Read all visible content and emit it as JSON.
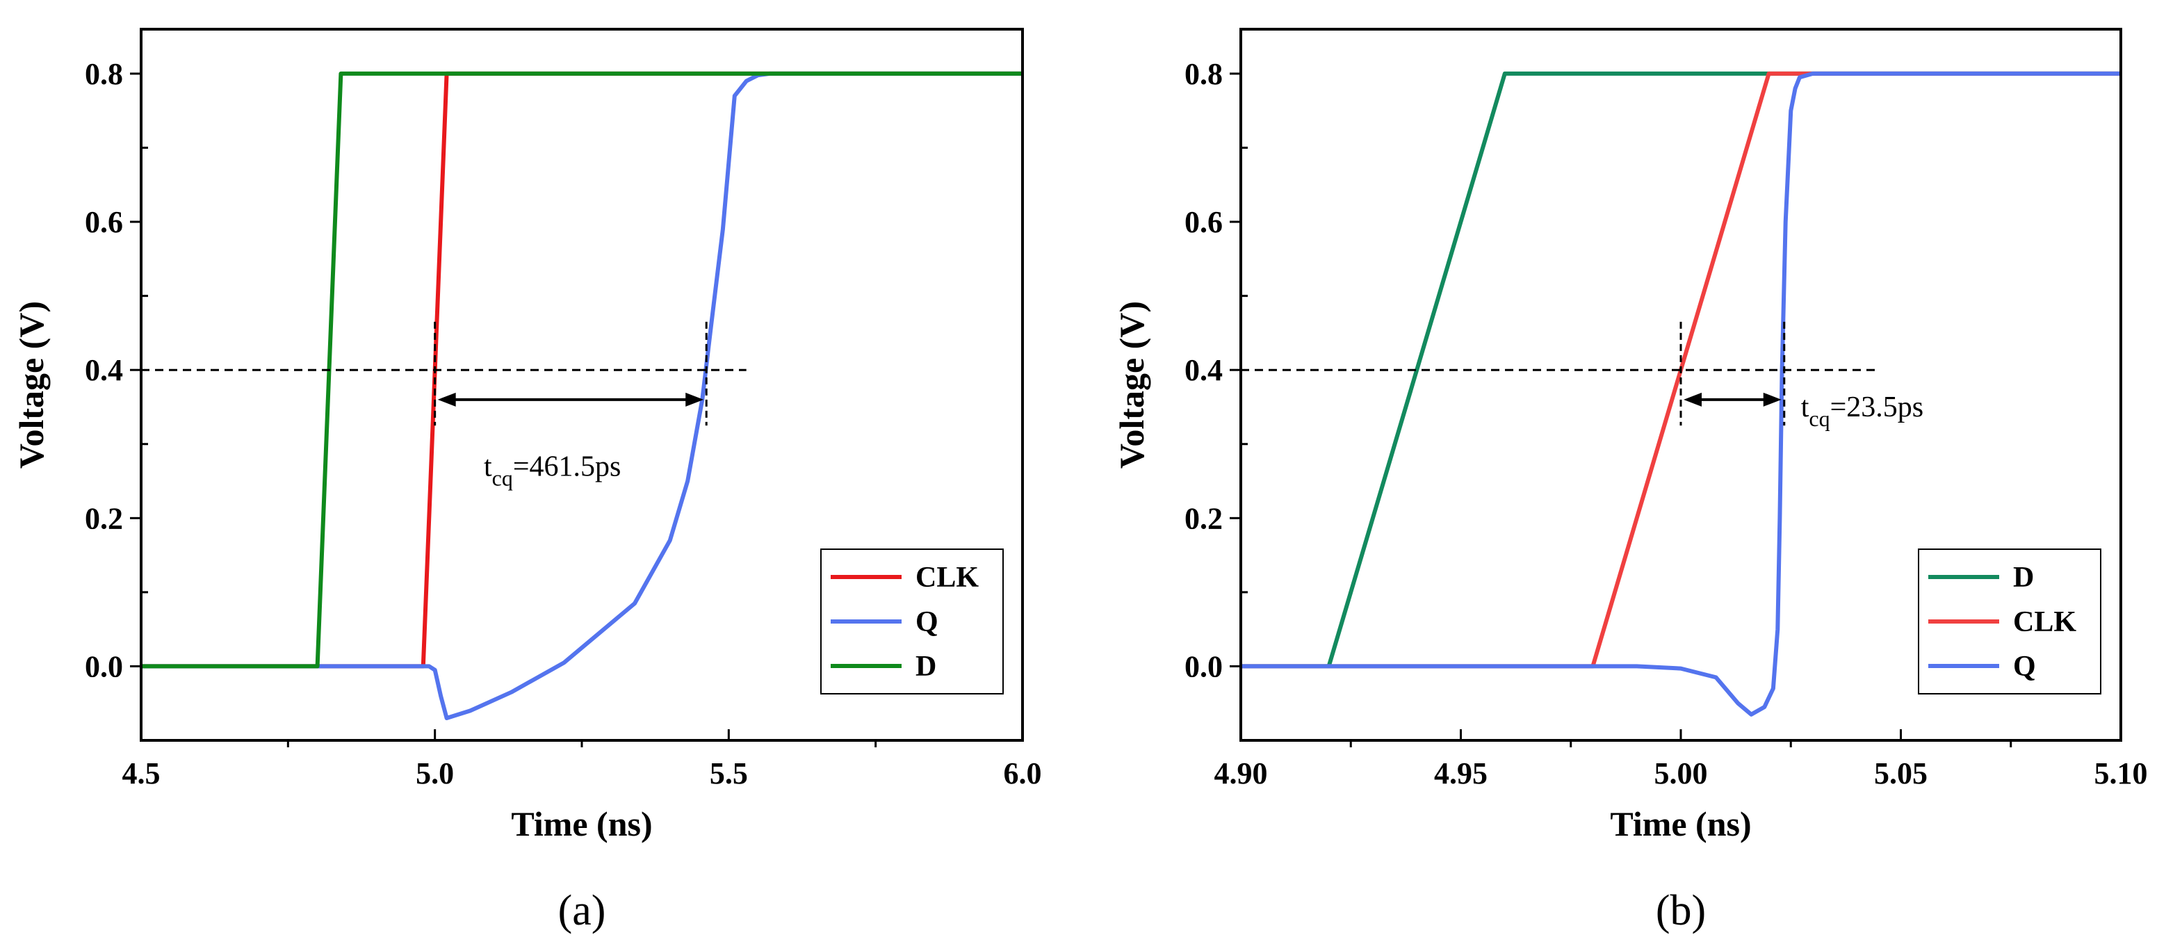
{
  "chart_data": [
    {
      "type": "line",
      "panel_label": "(a)",
      "xlabel": "Time (ns)",
      "ylabel": "Voltage (V)",
      "xlim": [
        4.5,
        6.0
      ],
      "ylim": [
        -0.1,
        0.86
      ],
      "xticks": [
        4.5,
        5.0,
        5.5,
        6.0
      ],
      "xtick_labels": [
        "4.5",
        "5.0",
        "5.5",
        "6.0"
      ],
      "yticks": [
        0.0,
        0.2,
        0.4,
        0.6,
        0.8
      ],
      "ytick_labels": [
        "0.0",
        "0.2",
        "0.4",
        "0.6",
        "0.8"
      ],
      "legend_position": "bottom-right",
      "series": [
        {
          "name": "CLK",
          "color": "#e8191c",
          "x": [
            4.5,
            4.98,
            5.02,
            6.0
          ],
          "y": [
            0.0,
            0.0,
            0.8,
            0.8
          ]
        },
        {
          "name": "Q",
          "color": "#5474ee",
          "x": [
            4.5,
            4.99,
            5.0,
            5.01,
            5.02,
            5.06,
            5.13,
            5.22,
            5.34,
            5.4,
            5.43,
            5.455,
            5.47,
            5.49,
            5.51,
            5.53,
            5.55,
            5.57,
            5.6,
            6.0
          ],
          "y": [
            0.0,
            0.0,
            -0.005,
            -0.04,
            -0.07,
            -0.06,
            -0.035,
            0.005,
            0.085,
            0.17,
            0.25,
            0.36,
            0.46,
            0.59,
            0.77,
            0.79,
            0.798,
            0.8,
            0.8,
            0.8
          ]
        },
        {
          "name": "D",
          "color": "#0f8a1c",
          "x": [
            4.5,
            4.8,
            4.84,
            6.0
          ],
          "y": [
            0.0,
            0.0,
            0.8,
            0.8
          ]
        }
      ],
      "annotation": {
        "label_main": "t",
        "label_sub": "cq",
        "label_value": "=461.5ps",
        "ref_level": 0.4,
        "ref_x_start": 4.5,
        "ref_x_end": 5.53,
        "t_start": 5.0,
        "t_end": 5.462
      }
    },
    {
      "type": "line",
      "panel_label": "(b)",
      "xlabel": "Time (ns)",
      "ylabel": "Voltage (V)",
      "xlim": [
        4.9,
        5.1
      ],
      "ylim": [
        -0.1,
        0.86
      ],
      "xticks": [
        4.9,
        4.95,
        5.0,
        5.05,
        5.1
      ],
      "xtick_labels": [
        "4.90",
        "4.95",
        "5.00",
        "5.05",
        "5.10"
      ],
      "yticks": [
        0.0,
        0.2,
        0.4,
        0.6,
        0.8
      ],
      "ytick_labels": [
        "0.0",
        "0.2",
        "0.4",
        "0.6",
        "0.8"
      ],
      "legend_position": "bottom-right",
      "series": [
        {
          "name": "D",
          "color": "#138a5e",
          "x": [
            4.9,
            4.92,
            4.96,
            5.1
          ],
          "y": [
            0.0,
            0.0,
            0.8,
            0.8
          ]
        },
        {
          "name": "CLK",
          "color": "#f04040",
          "x": [
            4.9,
            4.98,
            5.02,
            5.1
          ],
          "y": [
            0.0,
            0.0,
            0.8,
            0.8
          ]
        },
        {
          "name": "Q",
          "color": "#5474ee",
          "x": [
            4.9,
            4.99,
            5.0,
            5.008,
            5.013,
            5.016,
            5.019,
            5.021,
            5.022,
            5.0225,
            5.023,
            5.0238,
            5.025,
            5.026,
            5.027,
            5.03,
            5.1
          ],
          "y": [
            0.0,
            0.0,
            -0.003,
            -0.015,
            -0.05,
            -0.065,
            -0.055,
            -0.03,
            0.05,
            0.2,
            0.4,
            0.6,
            0.75,
            0.78,
            0.795,
            0.8,
            0.8
          ]
        }
      ],
      "annotation": {
        "label_main": "t",
        "label_sub": "cq",
        "label_value": "=23.5ps",
        "ref_level": 0.4,
        "ref_x_start": 4.9,
        "ref_x_end": 5.045,
        "t_start": 5.0,
        "t_end": 5.0235
      }
    }
  ]
}
